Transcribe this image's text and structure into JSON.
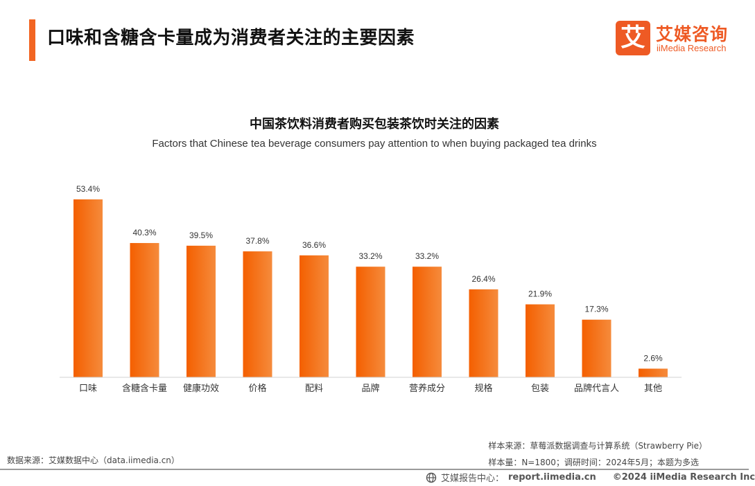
{
  "page_title": "口味和含糖含卡量成为消费者关注的主要因素",
  "brand": {
    "mark": "艾",
    "name_cn": "艾媒咨询",
    "name_en": "iiMedia Research",
    "color": "#ee5a24"
  },
  "chart_data": {
    "type": "bar",
    "title": "中国茶饮料消费者购买包装茶饮时关注的因素",
    "subtitle": "Factors that Chinese tea beverage consumers pay attention to when buying packaged tea drinks",
    "categories": [
      "口味",
      "含糖含卡量",
      "健康功效",
      "价格",
      "配料",
      "品牌",
      "营养成分",
      "规格",
      "包装",
      "品牌代言人",
      "其他"
    ],
    "values": [
      53.4,
      40.3,
      39.5,
      37.8,
      36.6,
      33.2,
      33.2,
      26.4,
      21.9,
      17.3,
      2.6
    ],
    "labels": [
      "53.4%",
      "40.3%",
      "39.5%",
      "37.8%",
      "36.6%",
      "33.2%",
      "33.2%",
      "26.4%",
      "21.9%",
      "17.3%",
      "2.6%"
    ],
    "unit": "%",
    "ylim": [
      0,
      53.4
    ],
    "bar_color_start": "#f45f00",
    "bar_color_end": "#f58b3c",
    "xlabel": "",
    "ylabel": "",
    "grid": false
  },
  "notes": {
    "sample_source": "样本来源：草莓派数据调查与计算系统（Strawberry Pie）",
    "sample_info": "样本量：N=1800；调研时间：2024年5月；本题为多选"
  },
  "data_source": "数据来源：艾媒数据中心（data.iimedia.cn）",
  "footer": {
    "report_center": "艾媒报告中心：",
    "site": "report.iimedia.cn",
    "copyright": "©2024  iiMedia Research Inc"
  }
}
